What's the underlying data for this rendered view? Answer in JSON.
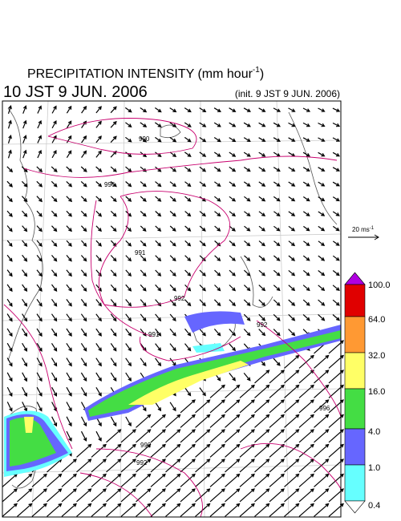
{
  "header": {
    "title": "PRECIPITATION INTENSITY (mm hour",
    "title_sup": "-1",
    "title_end": ")",
    "valid": "10 JST 9 JUN. 2006",
    "init": "(init. 9 JST 9 JUN. 2006)"
  },
  "wind_scale": {
    "label": "20 ms",
    "sup": "-1"
  },
  "colorbar": {
    "labels": [
      "100.0",
      "64.0",
      "32.0",
      "16.0",
      "4.0",
      "1.0",
      "0.4"
    ]
  },
  "contours": [
    "990",
    "996",
    "991",
    "992",
    "991",
    "992",
    "996",
    "992",
    "992"
  ]
}
